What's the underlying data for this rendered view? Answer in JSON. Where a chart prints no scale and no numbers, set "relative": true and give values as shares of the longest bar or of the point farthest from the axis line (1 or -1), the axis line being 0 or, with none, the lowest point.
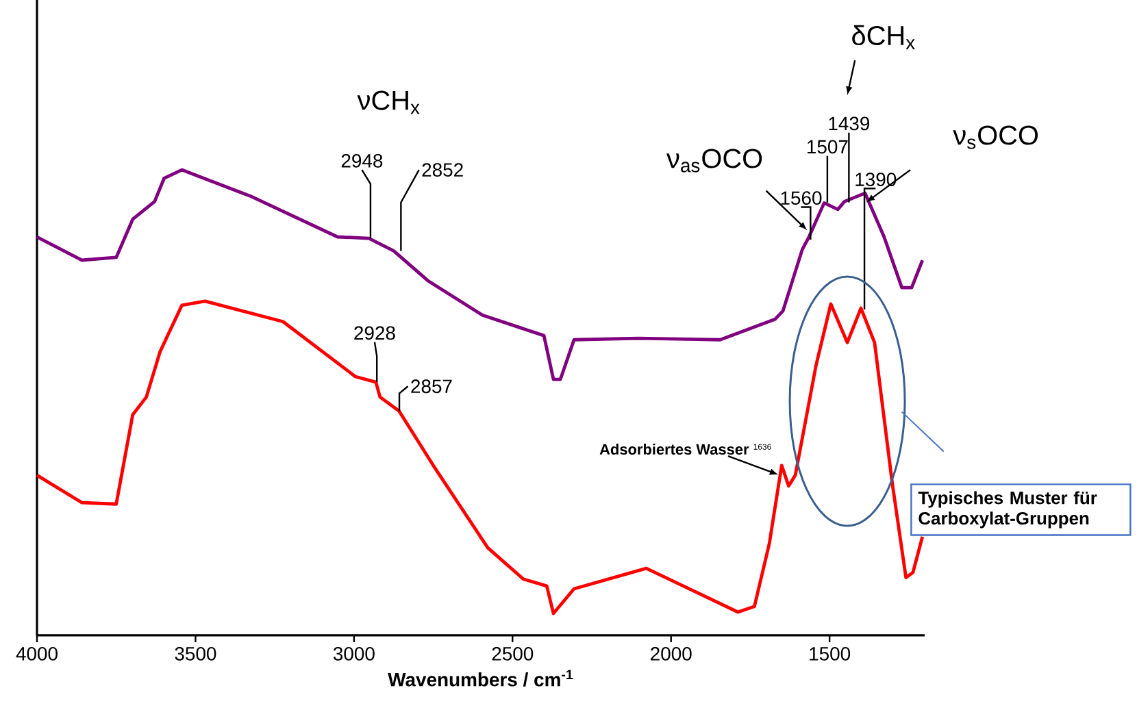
{
  "chart_data": {
    "type": "line",
    "relative": true,
    "xlabel": "Wavenumbers / cm$^{-1}$",
    "xlim": [
      4000,
      1200
    ],
    "xticks": [
      4000,
      3500,
      3000,
      2500,
      2000,
      1500
    ],
    "series": [
      {
        "color": "#800080",
        "x": [
          4000,
          3858,
          3750,
          3698,
          3629,
          3599,
          3543,
          3328,
          3052,
          2953,
          2875,
          2767,
          2595,
          2401,
          2371,
          2349,
          2306,
          2103,
          1845,
          1672,
          1647,
          1586,
          1565,
          1517,
          1474,
          1453,
          1388,
          1328,
          1272,
          1241,
          1207
        ],
        "values": [
          0.856,
          0.806,
          0.812,
          0.894,
          0.932,
          0.982,
          1.0,
          0.944,
          0.856,
          0.853,
          0.826,
          0.762,
          0.688,
          0.644,
          0.55,
          0.55,
          0.635,
          0.638,
          0.635,
          0.679,
          0.697,
          0.829,
          0.856,
          0.929,
          0.915,
          0.932,
          0.95,
          0.856,
          0.747,
          0.747,
          0.806
        ]
      },
      {
        "color": "#ff0000",
        "x": [
          4000,
          3858,
          3750,
          3698,
          3655,
          3612,
          3543,
          3470,
          3224,
          2996,
          2931,
          2918,
          2858,
          2750,
          2578,
          2466,
          2392,
          2371,
          2306,
          2078,
          1789,
          1737,
          1690,
          1651,
          1629,
          1608,
          1543,
          1496,
          1444,
          1401,
          1358,
          1302,
          1259,
          1237,
          1207
        ],
        "values": [
          0.344,
          0.285,
          0.282,
          0.474,
          0.512,
          0.609,
          0.709,
          0.718,
          0.674,
          0.556,
          0.544,
          0.512,
          0.482,
          0.365,
          0.188,
          0.121,
          0.106,
          0.047,
          0.1,
          0.144,
          0.05,
          0.062,
          0.197,
          0.365,
          0.321,
          0.344,
          0.579,
          0.712,
          0.629,
          0.703,
          0.629,
          0.326,
          0.124,
          0.135,
          0.212
        ]
      }
    ],
    "annotations": [
      "νCH$_{x}$",
      {
        "text": "2948",
        "x": 2948,
        "y": 0.853
      },
      {
        "text": "2852",
        "x": 2852,
        "y": 0.826
      },
      {
        "text": "2928",
        "x": 2928,
        "y": 0.544
      },
      {
        "text": "2857",
        "x": 2857,
        "y": 0.482
      },
      "δCH$_{x}$",
      {
        "text": "1439",
        "x": 1439,
        "y": 0.93
      },
      {
        "text": "1507",
        "x": 1507,
        "y": 0.93
      },
      {
        "text": "1560",
        "x": 1560,
        "y": 0.85
      },
      {
        "text": "1390",
        "x": 1390,
        "y": 0.7
      },
      "ν$_{as}$OCO",
      "ν$_{s}$OCO",
      "Adsorbiertes Wasser",
      {
        "text": "1636",
        "x": 1636,
        "y": 0.365
      },
      "Typisches Muster für Carboxylat-Gruppen"
    ]
  }
}
